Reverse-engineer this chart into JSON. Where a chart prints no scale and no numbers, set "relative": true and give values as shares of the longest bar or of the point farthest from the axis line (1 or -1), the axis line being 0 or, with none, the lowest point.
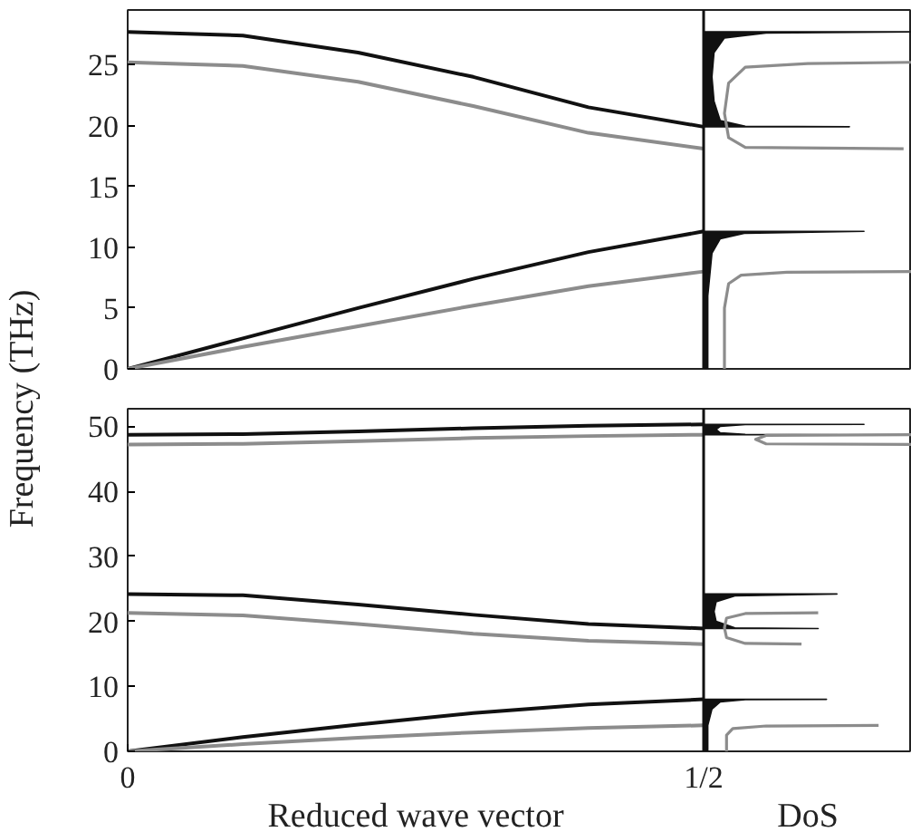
{
  "chart_data": [
    {
      "type": "line",
      "ylabel": "Frequency (THz)",
      "xlim": [
        0,
        0.5
      ],
      "ylim": [
        0,
        29.5
      ],
      "yticks": [
        0,
        5,
        10,
        15,
        20,
        25
      ],
      "tick_labels": "y",
      "x": [
        0,
        0.1,
        0.2,
        0.3,
        0.4,
        0.5
      ],
      "series": [
        {
          "color": "#111111",
          "values": [
            0,
            2.5,
            5.0,
            7.4,
            9.6,
            11.3
          ]
        },
        {
          "color": "#8c8c8c",
          "values": [
            0,
            1.8,
            3.5,
            5.2,
            6.8,
            8.0
          ]
        },
        {
          "color": "#111111",
          "values": [
            27.7,
            27.4,
            26.0,
            24.0,
            21.5,
            19.9
          ]
        },
        {
          "color": "#8c8c8c",
          "values": [
            25.2,
            24.9,
            23.6,
            21.6,
            19.4,
            18.1
          ]
        }
      ]
    },
    {
      "type": "line",
      "orientation": "horizontal",
      "relative": true,
      "ylim": [
        0,
        29.5
      ],
      "tick_labels": false,
      "series": [
        {
          "type": "area",
          "color": "#111111",
          "x": [
            0,
            6,
            9.5,
            10.7,
            11.15,
            11.3
          ],
          "values": [
            0.02,
            0.02,
            0.04,
            0.08,
            0.2,
            0.77
          ]
        },
        {
          "color": "#8c8c8c",
          "x": [
            0,
            5,
            7,
            7.7,
            7.95,
            8.0
          ],
          "values": [
            0.1,
            0.1,
            0.12,
            0.18,
            0.4,
            1.0
          ]
        },
        {
          "type": "area",
          "color": "#111111",
          "x": [
            19.9,
            19.95,
            20.4,
            22,
            24,
            26,
            27.2,
            27.6,
            27.7
          ],
          "values": [
            0.7,
            0.2,
            0.08,
            0.05,
            0.04,
            0.05,
            0.1,
            0.3,
            1.0
          ]
        },
        {
          "color": "#8c8c8c",
          "x": [
            18.1,
            18.2,
            19,
            21,
            23.5,
            24.8,
            25.1,
            25.2
          ],
          "values": [
            0.96,
            0.2,
            0.12,
            0.1,
            0.12,
            0.2,
            0.5,
            1.0
          ]
        }
      ]
    },
    {
      "type": "line",
      "xlabel": "Reduced wave vector",
      "xlim": [
        0,
        0.5
      ],
      "ylim": [
        0,
        52.7
      ],
      "xticks": [
        {
          "value": 0,
          "label": "0"
        },
        {
          "value": 0.5,
          "label": "1/2"
        }
      ],
      "yticks": [
        0,
        10,
        20,
        30,
        40,
        50
      ],
      "x": [
        0,
        0.1,
        0.2,
        0.3,
        0.4,
        0.5
      ],
      "series": [
        {
          "color": "#111111",
          "values": [
            0,
            2.2,
            4.1,
            5.9,
            7.2,
            8.0
          ]
        },
        {
          "color": "#8c8c8c",
          "values": [
            0,
            1.1,
            2.1,
            2.9,
            3.6,
            4.0
          ]
        },
        {
          "color": "#111111",
          "values": [
            24.2,
            24.0,
            22.6,
            21.0,
            19.6,
            18.9
          ]
        },
        {
          "color": "#8c8c8c",
          "values": [
            21.3,
            20.9,
            19.6,
            18.1,
            17.0,
            16.5
          ]
        },
        {
          "color": "#111111",
          "values": [
            48.7,
            48.8,
            49.2,
            49.7,
            50.1,
            50.3
          ]
        },
        {
          "color": "#8c8c8c",
          "values": [
            47.2,
            47.3,
            47.7,
            48.2,
            48.5,
            48.7
          ]
        }
      ]
    },
    {
      "type": "line",
      "orientation": "horizontal",
      "relative": true,
      "xlabel": "DoS",
      "ylim": [
        0,
        52.7
      ],
      "tick_labels": false,
      "series": [
        {
          "type": "area",
          "color": "#111111",
          "x": [
            0,
            4,
            6.5,
            7.6,
            7.95,
            8.0
          ],
          "values": [
            0.02,
            0.02,
            0.04,
            0.08,
            0.2,
            0.59
          ]
        },
        {
          "color": "#8c8c8c",
          "x": [
            0,
            2.5,
            3.5,
            3.9,
            4.0
          ],
          "values": [
            0.11,
            0.11,
            0.14,
            0.3,
            0.84
          ]
        },
        {
          "type": "area",
          "color": "#111111",
          "x": [
            18.9,
            19.0,
            20,
            21.5,
            23,
            23.9,
            24.2
          ],
          "values": [
            0.55,
            0.15,
            0.06,
            0.05,
            0.06,
            0.15,
            0.64
          ]
        },
        {
          "color": "#8c8c8c",
          "x": [
            16.5,
            16.6,
            17.5,
            19,
            20.5,
            21.2,
            21.3
          ],
          "values": [
            0.47,
            0.2,
            0.11,
            0.1,
            0.11,
            0.2,
            0.55
          ]
        },
        {
          "type": "area",
          "color": "#111111",
          "x": [
            48.7,
            48.75,
            49.0,
            49.5,
            50.0,
            50.25,
            50.3
          ],
          "values": [
            0.67,
            0.2,
            0.08,
            0.06,
            0.08,
            0.2,
            0.77
          ]
        },
        {
          "color": "#8c8c8c",
          "x": [
            47.2,
            47.3,
            48,
            48.6,
            48.7
          ],
          "values": [
            1.0,
            0.3,
            0.25,
            0.3,
            1.0
          ]
        }
      ]
    }
  ]
}
